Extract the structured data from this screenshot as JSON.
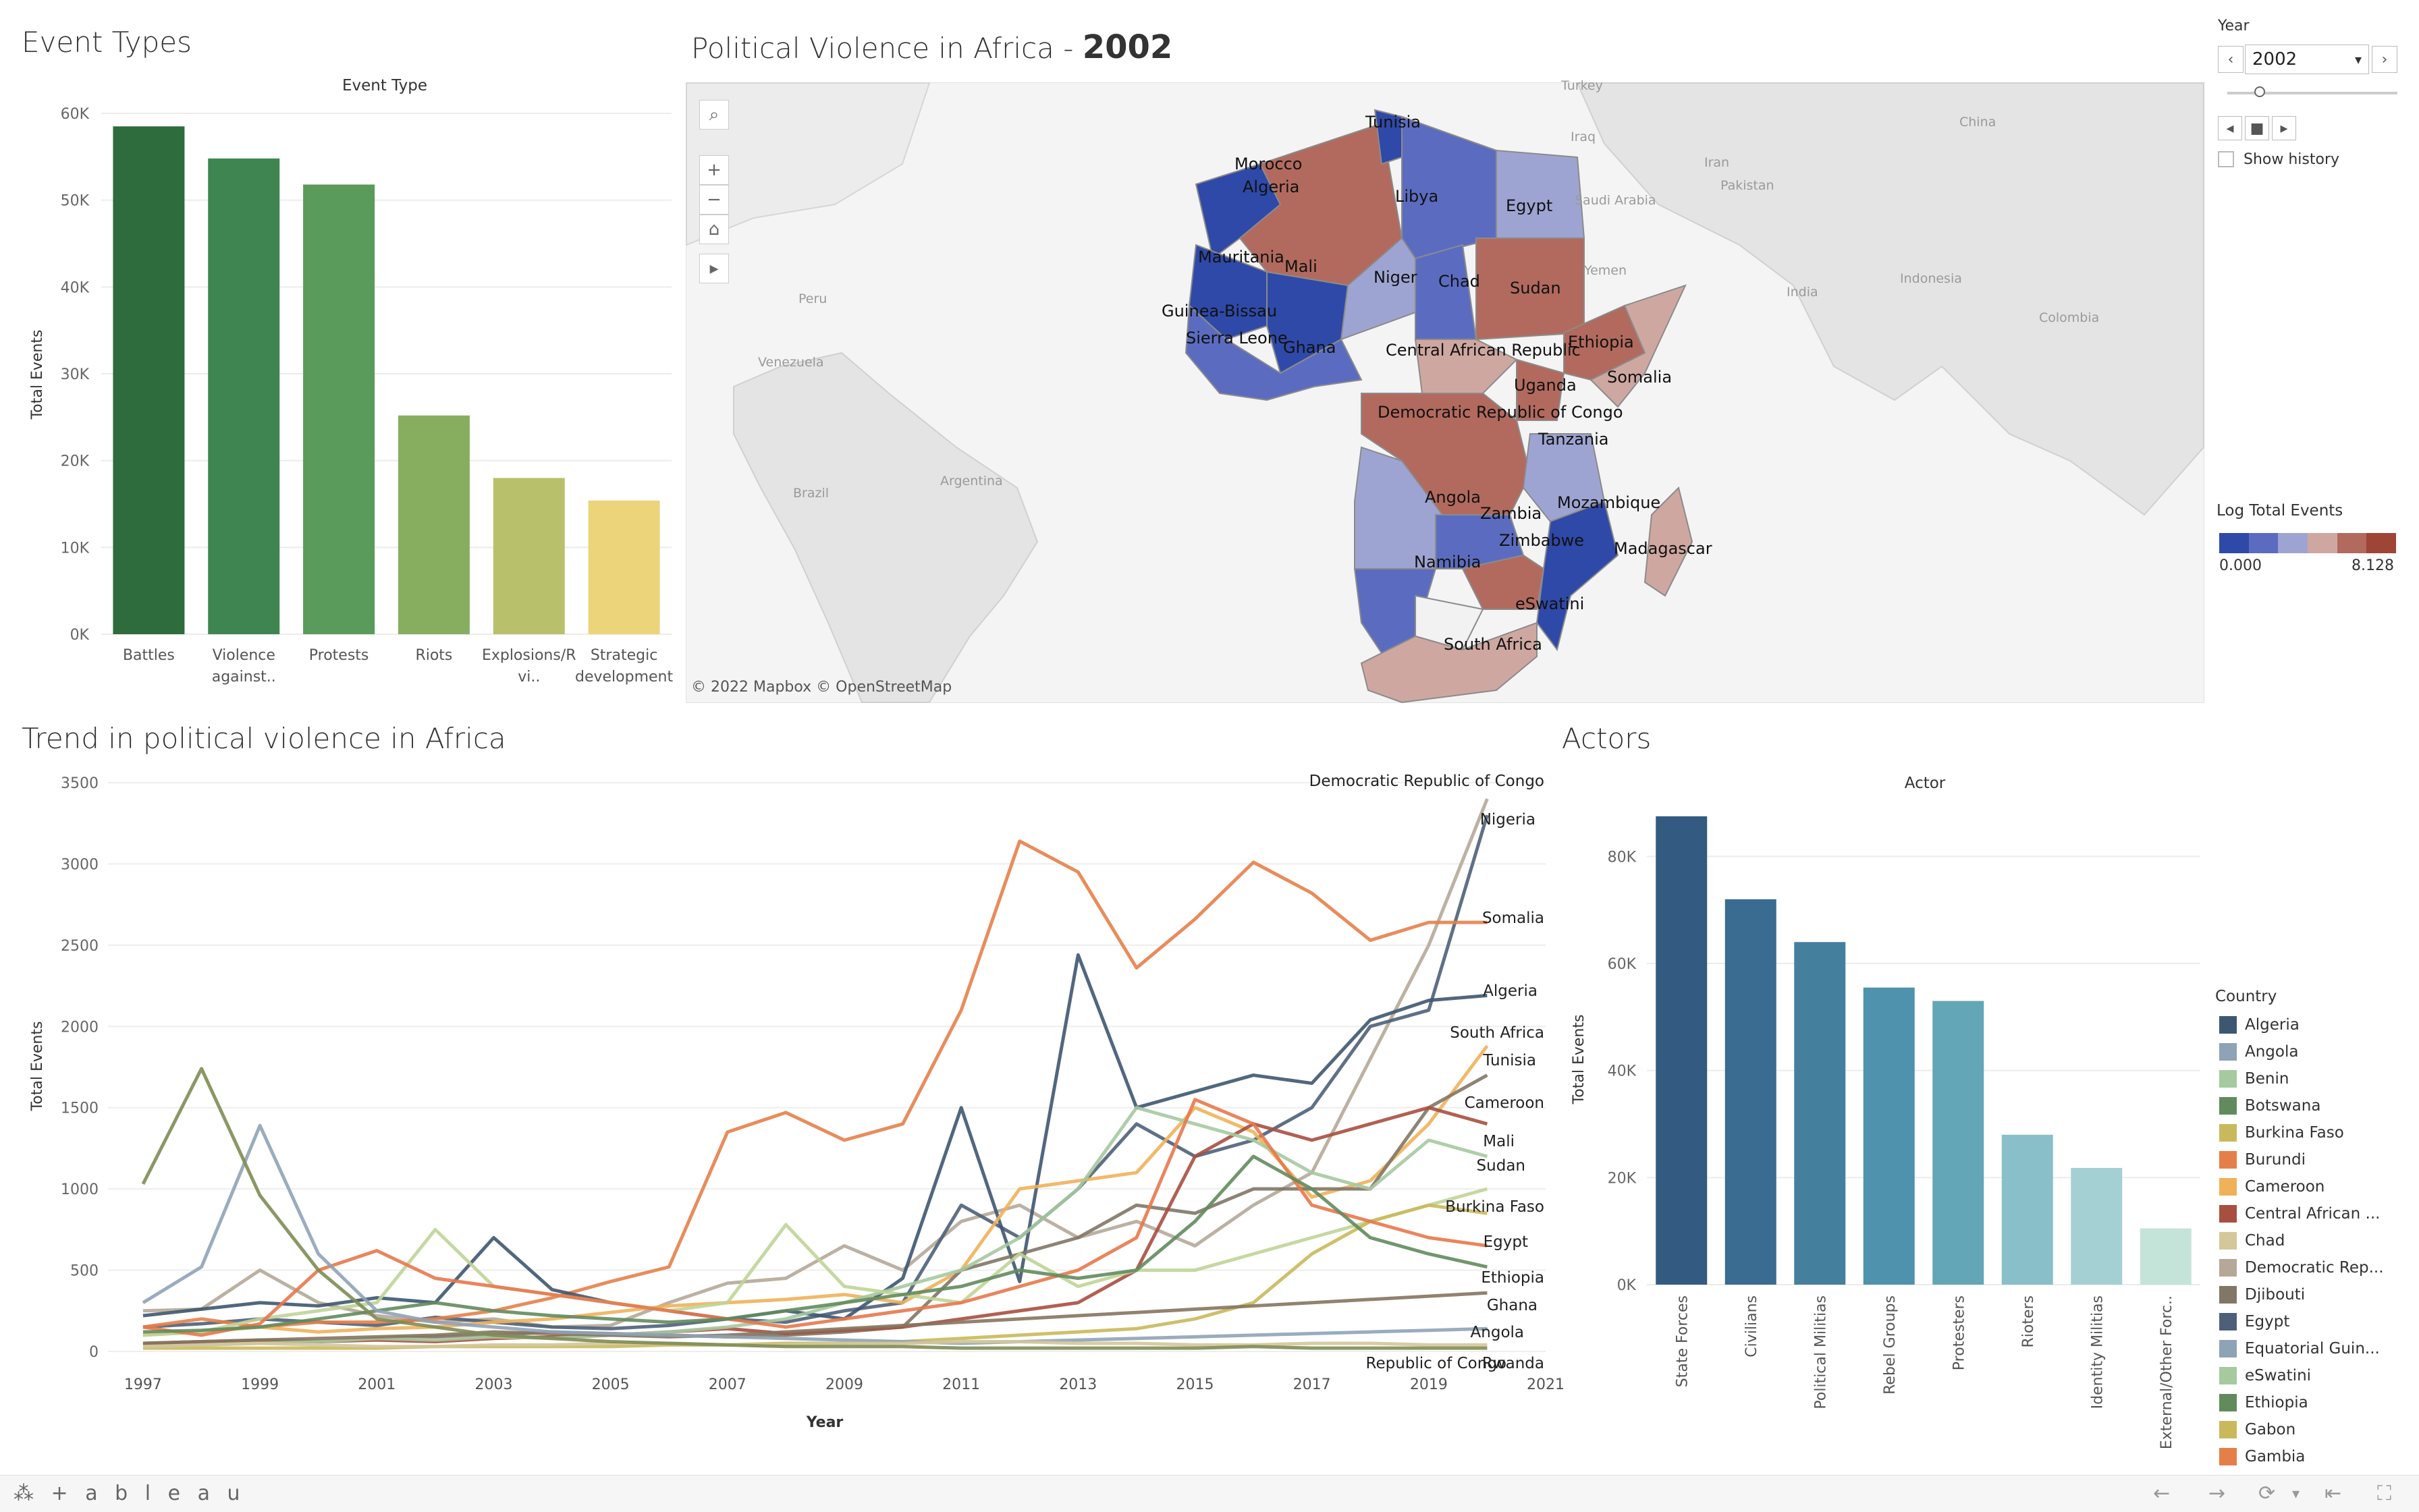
{
  "event_types": {
    "title": "Event Types",
    "subtitle": "Event Type",
    "chart_data": {
      "type": "bar",
      "title": "Event Type",
      "ylabel": "Total Events",
      "categories": [
        "Battles",
        "Violence against..",
        "Protests",
        "Riots",
        "Explosions/Remote vi..",
        "Strategic development"
      ],
      "category_lines": [
        [
          "Battles"
        ],
        [
          "Violence",
          "against.."
        ],
        [
          "Protests"
        ],
        [
          "Riots"
        ],
        [
          "Explosions/R",
          "vi.."
        ],
        [
          "Strategic",
          "development"
        ]
      ],
      "values": [
        58500,
        54800,
        51800,
        25200,
        18000,
        15400
      ],
      "ylim": [
        0,
        60000
      ],
      "yticks": [
        "0K",
        "10K",
        "20K",
        "30K",
        "40K",
        "50K",
        "60K"
      ],
      "colors": [
        "#2e6b3d",
        "#3f8551",
        "#5a9a5b",
        "#87ae5f",
        "#b9c06c",
        "#ecd47a"
      ]
    }
  },
  "map": {
    "title_prefix": "Political Violence in Africa - ",
    "title_year": "2002",
    "attribution": "© 2022 Mapbox  © OpenStreetMap",
    "tools": [
      "search-icon",
      "zoom-in-icon",
      "zoom-out-icon",
      "home-icon",
      "play-icon"
    ],
    "tool_glyphs": [
      "⌕",
      "+",
      "−",
      "⌂",
      "▸"
    ],
    "background_labels": [
      "Turkey",
      "Iraq",
      "Saudi Arabia",
      "Yemen",
      "Iran",
      "Pakistan",
      "China",
      "India",
      "Indonesia",
      "Colombia",
      "Venezuela",
      "Peru",
      "Brazil",
      "Argentina"
    ],
    "country_labels": [
      "Tunisia",
      "Morocco",
      "Algeria",
      "Libya",
      "Egypt",
      "Mauritania",
      "Mali",
      "Niger",
      "Chad",
      "Sudan",
      "Guinea-Bissau",
      "Sierra Leone",
      "Ghana",
      "Central African Republic",
      "Ethiopia",
      "Somalia",
      "Uganda",
      "Democratic Republic of Congo",
      "Tanzania",
      "Angola",
      "Zambia",
      "Mozambique",
      "Zimbabwe",
      "Madagascar",
      "Namibia",
      "eSwatini",
      "South Africa"
    ]
  },
  "filters": {
    "year_label": "Year",
    "year_value": "2002",
    "prev_glyph": "‹",
    "next_glyph": "›",
    "caret": "▾",
    "play_glyphs": [
      "◂",
      "■",
      "▸"
    ],
    "show_history": "Show history"
  },
  "log_legend": {
    "title": "Log Total Events",
    "min": "0.000",
    "max": "8.128",
    "colors": [
      "#2f49a8",
      "#5b6cc0",
      "#9ea4d2",
      "#cfa7a1",
      "#b26a5e",
      "#9e4536"
    ]
  },
  "trend": {
    "title": "Trend in political violence in Africa",
    "chart_data": {
      "type": "line",
      "ylabel": "Total Events",
      "xlabel": "Year",
      "x": [
        1997,
        1998,
        1999,
        2000,
        2001,
        2002,
        2003,
        2004,
        2005,
        2006,
        2007,
        2008,
        2009,
        2010,
        2011,
        2012,
        2013,
        2014,
        2015,
        2016,
        2017,
        2018,
        2019,
        2020
      ],
      "xticks": [
        "1997",
        "1999",
        "2001",
        "2003",
        "2005",
        "2007",
        "2009",
        "2011",
        "2013",
        "2015",
        "2017",
        "2019",
        "2021"
      ],
      "yticks": [
        "0",
        "500",
        "1000",
        "1500",
        "2000",
        "2500",
        "3000",
        "3500"
      ],
      "ylim": [
        0,
        3500
      ],
      "xlim": [
        1996.4,
        2021
      ],
      "series": [
        {
          "name": "Democratic Republic of Congo",
          "color": "#b5a898",
          "values": [
            250,
            260,
            500,
            300,
            220,
            180,
            200,
            150,
            160,
            300,
            420,
            450,
            650,
            500,
            800,
            900,
            700,
            800,
            650,
            900,
            1100,
            1800,
            2500,
            3400
          ]
        },
        {
          "name": "Nigeria",
          "color": "#4e6079",
          "values": [
            150,
            170,
            200,
            180,
            160,
            210,
            180,
            150,
            140,
            160,
            200,
            180,
            250,
            300,
            900,
            700,
            1000,
            1400,
            1200,
            1300,
            1500,
            2000,
            2100,
            3300
          ]
        },
        {
          "name": "Somalia",
          "color": "#e57f4a",
          "values": [
            150,
            200,
            150,
            180,
            180,
            200,
            250,
            330,
            430,
            520,
            1350,
            1470,
            1300,
            1400,
            2100,
            3140,
            2950,
            2360,
            2660,
            3010,
            2820,
            2530,
            2640,
            2640
          ]
        },
        {
          "name": "Algeria",
          "color": "#3e5770",
          "values": [
            220,
            260,
            300,
            280,
            330,
            300,
            700,
            380,
            300,
            250,
            200,
            250,
            200,
            450,
            1500,
            430,
            2440,
            1500,
            1600,
            1700,
            1650,
            2040,
            2160,
            2190
          ]
        },
        {
          "name": "South Africa",
          "color": "#f0b159",
          "values": [
            100,
            120,
            150,
            120,
            140,
            150,
            180,
            200,
            240,
            280,
            300,
            320,
            350,
            300,
            500,
            1000,
            1050,
            1100,
            1500,
            1350,
            950,
            1050,
            1400,
            1880
          ]
        },
        {
          "name": "Tunisia",
          "color": "#817766",
          "values": [
            50,
            60,
            70,
            60,
            80,
            90,
            100,
            120,
            110,
            100,
            90,
            100,
            120,
            150,
            500,
            600,
            700,
            900,
            850,
            1000,
            1000,
            1000,
            1500,
            1700
          ]
        },
        {
          "name": "Cameroon",
          "color": "#a94f40",
          "values": [
            40,
            50,
            60,
            60,
            70,
            60,
            80,
            90,
            100,
            120,
            140,
            110,
            130,
            150,
            200,
            250,
            300,
            500,
            1200,
            1400,
            1300,
            1400,
            1500,
            1400
          ]
        },
        {
          "name": "Mali",
          "color": "#a6c9a0",
          "values": [
            30,
            40,
            50,
            60,
            80,
            70,
            90,
            80,
            100,
            120,
            150,
            200,
            300,
            400,
            500,
            700,
            1000,
            1500,
            1400,
            1300,
            1100,
            1000,
            1300,
            1200
          ]
        },
        {
          "name": "Sudan",
          "color": "#c0d497",
          "values": [
            100,
            120,
            200,
            250,
            300,
            750,
            400,
            350,
            300,
            250,
            300,
            780,
            400,
            350,
            300,
            600,
            400,
            500,
            500,
            600,
            700,
            800,
            900,
            1000
          ]
        },
        {
          "name": "Burkina Faso",
          "color": "#c9b95c",
          "values": [
            20,
            20,
            20,
            20,
            20,
            30,
            30,
            30,
            30,
            40,
            40,
            50,
            50,
            60,
            80,
            100,
            120,
            140,
            200,
            300,
            600,
            800,
            900,
            850
          ]
        },
        {
          "name": "Egypt",
          "color": "#e8784b",
          "values": [
            150,
            100,
            170,
            500,
            620,
            450,
            400,
            350,
            300,
            250,
            200,
            150,
            200,
            250,
            300,
            400,
            500,
            700,
            1550,
            1400,
            900,
            800,
            700,
            650
          ]
        },
        {
          "name": "Ethiopia",
          "color": "#628b5d",
          "values": [
            120,
            130,
            150,
            200,
            250,
            300,
            250,
            220,
            200,
            180,
            200,
            250,
            300,
            350,
            400,
            500,
            450,
            500,
            800,
            1200,
            1000,
            700,
            600,
            520
          ]
        },
        {
          "name": "Ghana",
          "color": "#86745e",
          "values": [
            50,
            60,
            70,
            80,
            90,
            100,
            120,
            110,
            100,
            90,
            100,
            120,
            140,
            160,
            180,
            200,
            220,
            240,
            260,
            280,
            300,
            320,
            340,
            360
          ]
        },
        {
          "name": "Angola",
          "color": "#8fa3b6",
          "values": [
            300,
            520,
            1390,
            600,
            250,
            180,
            150,
            120,
            110,
            100,
            90,
            80,
            70,
            60,
            50,
            60,
            70,
            80,
            90,
            100,
            110,
            120,
            130,
            140
          ]
        },
        {
          "name": "Republic of Congo",
          "color": "#d4c79a",
          "values": [
            30,
            40,
            50,
            40,
            30,
            30,
            40,
            40,
            50,
            50,
            40,
            40,
            50,
            50,
            60,
            60,
            50,
            50,
            40,
            40,
            50,
            50,
            40,
            40
          ]
        },
        {
          "name": "Rwanda",
          "color": "#7e8c54",
          "values": [
            1030,
            1740,
            960,
            500,
            200,
            150,
            100,
            80,
            60,
            50,
            40,
            30,
            30,
            30,
            20,
            20,
            20,
            20,
            20,
            30,
            20,
            20,
            20,
            20
          ]
        }
      ]
    }
  },
  "actors": {
    "title": "Actors",
    "subtitle": "Actor",
    "chart_data": {
      "type": "bar",
      "title": "Actor",
      "ylabel": "Total Events",
      "categories": [
        "State Forces",
        "Civilians",
        "Political Militias",
        "Rebel Groups",
        "Protesters",
        "Rioters",
        "Identity Militias",
        "External/Other Forc.."
      ],
      "values": [
        87500,
        72000,
        64000,
        55500,
        53000,
        28000,
        21800,
        10500
      ],
      "ylim": [
        0,
        90000
      ],
      "yticks": [
        "0K",
        "20K",
        "40K",
        "60K",
        "80K"
      ],
      "colors": [
        "#335a80",
        "#3a6b90",
        "#447f9e",
        "#4f92ad",
        "#62a6b8",
        "#89bfc9",
        "#a4d0d3",
        "#c4e4da"
      ]
    }
  },
  "country_legend": {
    "title": "Country",
    "items": [
      {
        "label": "Algeria",
        "color": "#3e5770"
      },
      {
        "label": "Angola",
        "color": "#8fa3b6"
      },
      {
        "label": "Benin",
        "color": "#a6c9a0"
      },
      {
        "label": "Botswana",
        "color": "#628b5d"
      },
      {
        "label": "Burkina Faso",
        "color": "#c9b95c"
      },
      {
        "label": "Burundi",
        "color": "#e57f4a"
      },
      {
        "label": "Cameroon",
        "color": "#f0b159"
      },
      {
        "label": "Central African ...",
        "color": "#a94f40"
      },
      {
        "label": "Chad",
        "color": "#d4c79a"
      },
      {
        "label": "Democratic Rep...",
        "color": "#b5a898"
      },
      {
        "label": "Djibouti",
        "color": "#817766"
      },
      {
        "label": "Egypt",
        "color": "#4e6079"
      },
      {
        "label": "Equatorial Guin...",
        "color": "#8fa3b6"
      },
      {
        "label": "eSwatini",
        "color": "#a6c9a0"
      },
      {
        "label": "Ethiopia",
        "color": "#628b5d"
      },
      {
        "label": "Gabon",
        "color": "#c9b95c"
      },
      {
        "label": "Gambia",
        "color": "#e57f4a"
      }
    ]
  },
  "footer": {
    "logo": "⁂ + a b l e a u",
    "nav": [
      "←",
      "→",
      "⟳",
      "▾",
      "⇤",
      "⛶"
    ]
  }
}
